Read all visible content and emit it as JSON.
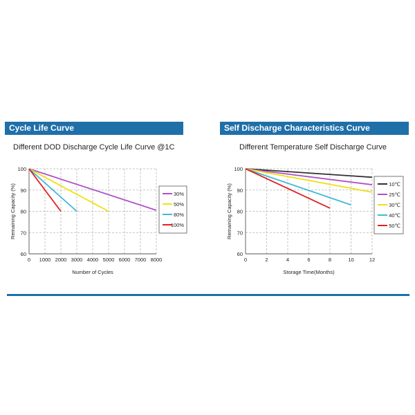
{
  "sections": {
    "left_header": "Cycle Life Curve",
    "right_header": "Self Discharge Characteristics Curve"
  },
  "chart_data": [
    {
      "type": "line",
      "title": "Different DOD Discharge Cycle Life Curve @1C",
      "xlabel": "Number of Cycles",
      "ylabel": "Remaining Capacity (%)",
      "xlim": [
        0,
        8000
      ],
      "ylim": [
        60,
        100
      ],
      "xticks": [
        0,
        1000,
        2000,
        3000,
        4000,
        5000,
        6000,
        7000,
        8000
      ],
      "yticks": [
        60,
        70,
        80,
        90,
        100
      ],
      "grid": true,
      "legend_position": "right",
      "series": [
        {
          "name": "30%",
          "color": "#b050c8",
          "x": [
            0,
            8000
          ],
          "y": [
            100,
            80.5
          ]
        },
        {
          "name": "50%",
          "color": "#f0e010",
          "x": [
            0,
            5000
          ],
          "y": [
            100,
            80
          ]
        },
        {
          "name": "80%",
          "color": "#40b8d8",
          "x": [
            0,
            3000
          ],
          "y": [
            100,
            80
          ]
        },
        {
          "name": "100%",
          "color": "#e02020",
          "x": [
            0,
            2000
          ],
          "y": [
            100,
            80
          ]
        }
      ]
    },
    {
      "type": "line",
      "title": "Different Temperature Self Discharge Curve",
      "xlabel": "Storage Time(Months)",
      "ylabel": "Remaining Capacity (%)",
      "xlim": [
        0,
        12
      ],
      "ylim": [
        60,
        100
      ],
      "xticks": [
        0,
        2,
        4,
        6,
        8,
        10,
        12
      ],
      "yticks": [
        60,
        70,
        80,
        90,
        100
      ],
      "grid": true,
      "legend_position": "right",
      "series": [
        {
          "name": "10℃",
          "color": "#303030",
          "x": [
            0,
            12
          ],
          "y": [
            100,
            96
          ]
        },
        {
          "name": "25℃",
          "color": "#b050c8",
          "x": [
            0,
            12
          ],
          "y": [
            100,
            92.5
          ]
        },
        {
          "name": "30℃",
          "color": "#f0e010",
          "x": [
            0,
            12
          ],
          "y": [
            100,
            89
          ]
        },
        {
          "name": "40℃",
          "color": "#40b8d8",
          "x": [
            0,
            10
          ],
          "y": [
            100,
            83
          ]
        },
        {
          "name": "50℃",
          "color": "#e02020",
          "x": [
            0,
            8
          ],
          "y": [
            100,
            81.5
          ]
        }
      ]
    }
  ]
}
